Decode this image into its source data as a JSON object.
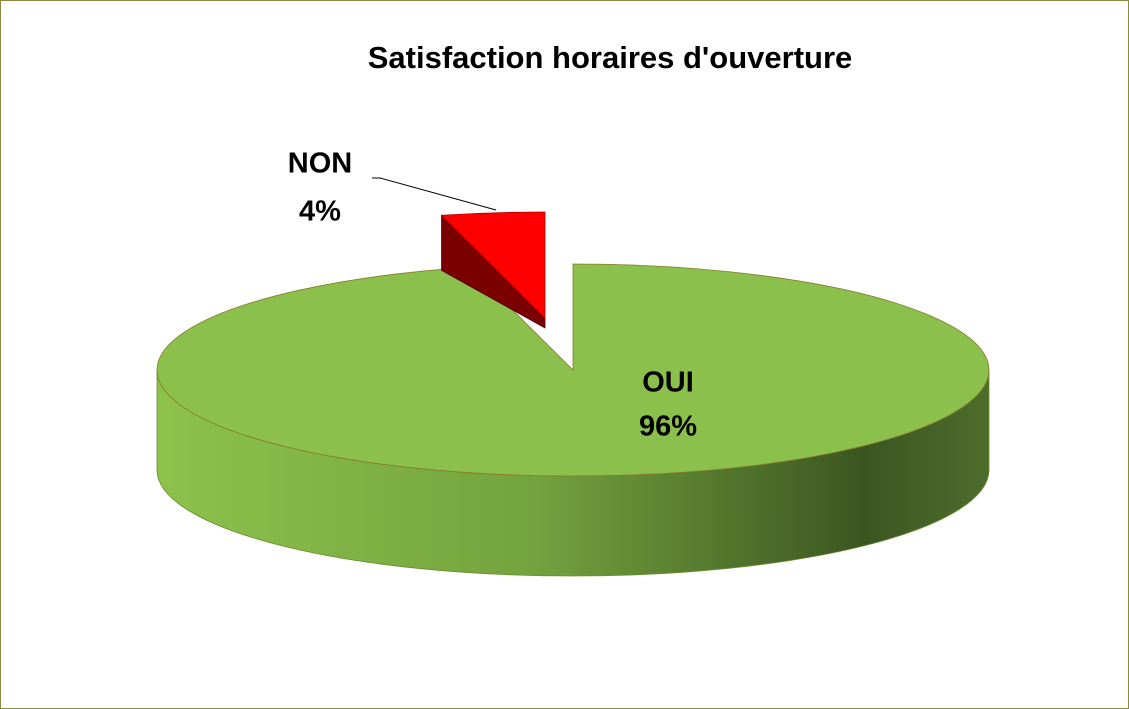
{
  "chart_data": {
    "type": "pie",
    "title": "Satisfaction horaires d'ouverture",
    "categories": [
      "OUI",
      "NON"
    ],
    "values": [
      96,
      4
    ],
    "value_labels": [
      "96%",
      "4%"
    ],
    "colors": [
      "#8cc04c",
      "#ff0000"
    ]
  }
}
